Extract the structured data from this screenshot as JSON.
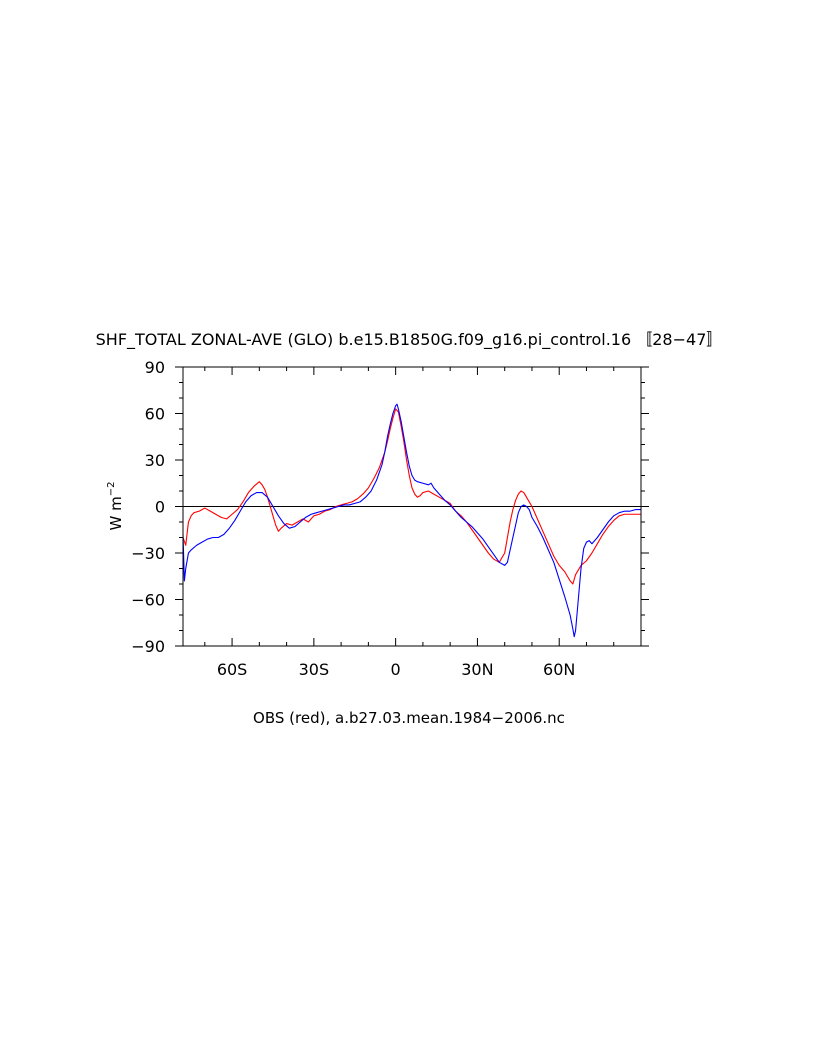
{
  "chart_data": {
    "type": "line",
    "title": "SHF_TOTAL ZONAL-AVE (GLO) b.e15.B1850G.f09_g16.pi_control.16 〚28−47〛",
    "xlabel": "OBS (red), a.b27.03.mean.1984−2006.nc",
    "ylabel": "W m",
    "ylabel_sup": "−2",
    "xlim": [
      -78,
      90
    ],
    "ylim": [
      -90,
      90
    ],
    "grid": false,
    "zero_line": true,
    "x_ticks": [
      {
        "value": -60,
        "label": "60S"
      },
      {
        "value": -30,
        "label": "30S"
      },
      {
        "value": 0,
        "label": "0"
      },
      {
        "value": 30,
        "label": "30N"
      },
      {
        "value": 60,
        "label": "60N"
      }
    ],
    "y_ticks": [
      {
        "value": 90,
        "label": "90"
      },
      {
        "value": 60,
        "label": "60"
      },
      {
        "value": 30,
        "label": "30"
      },
      {
        "value": 0,
        "label": "0"
      },
      {
        "value": -30,
        "label": "−30"
      },
      {
        "value": -60,
        "label": "−60"
      },
      {
        "value": -90,
        "label": "−90"
      }
    ],
    "series": [
      {
        "color": "#ff0000",
        "points": [
          [
            -78,
            -20
          ],
          [
            -77,
            -25
          ],
          [
            -76,
            -10
          ],
          [
            -75,
            -6
          ],
          [
            -74,
            -4
          ],
          [
            -72,
            -3
          ],
          [
            -70,
            -1
          ],
          [
            -68,
            -3
          ],
          [
            -66,
            -5
          ],
          [
            -64,
            -7
          ],
          [
            -62,
            -8
          ],
          [
            -60,
            -5
          ],
          [
            -58,
            -2
          ],
          [
            -56,
            3
          ],
          [
            -54,
            9
          ],
          [
            -52,
            13
          ],
          [
            -50,
            16
          ],
          [
            -49,
            14
          ],
          [
            -48,
            11
          ],
          [
            -47,
            6
          ],
          [
            -46,
            0
          ],
          [
            -45,
            -6
          ],
          [
            -44,
            -12
          ],
          [
            -43,
            -16
          ],
          [
            -42,
            -14
          ],
          [
            -40,
            -11
          ],
          [
            -38,
            -12
          ],
          [
            -36,
            -10
          ],
          [
            -34,
            -8
          ],
          [
            -32,
            -10
          ],
          [
            -30,
            -6
          ],
          [
            -28,
            -5
          ],
          [
            -26,
            -3
          ],
          [
            -24,
            -2
          ],
          [
            -22,
            0
          ],
          [
            -20,
            1
          ],
          [
            -18,
            2
          ],
          [
            -16,
            3
          ],
          [
            -14,
            5
          ],
          [
            -12,
            8
          ],
          [
            -10,
            12
          ],
          [
            -8,
            18
          ],
          [
            -6,
            25
          ],
          [
            -4,
            35
          ],
          [
            -3,
            42
          ],
          [
            -2,
            50
          ],
          [
            -1,
            57
          ],
          [
            0,
            63
          ],
          [
            1,
            61
          ],
          [
            2,
            52
          ],
          [
            3,
            42
          ],
          [
            4,
            30
          ],
          [
            5,
            20
          ],
          [
            6,
            12
          ],
          [
            7,
            8
          ],
          [
            8,
            6
          ],
          [
            9,
            7
          ],
          [
            10,
            9
          ],
          [
            12,
            10
          ],
          [
            14,
            8
          ],
          [
            16,
            6
          ],
          [
            18,
            4
          ],
          [
            20,
            2
          ],
          [
            22,
            -3
          ],
          [
            24,
            -6
          ],
          [
            26,
            -10
          ],
          [
            28,
            -15
          ],
          [
            30,
            -20
          ],
          [
            32,
            -25
          ],
          [
            34,
            -30
          ],
          [
            36,
            -34
          ],
          [
            38,
            -36
          ],
          [
            40,
            -30
          ],
          [
            41,
            -20
          ],
          [
            42,
            -10
          ],
          [
            43,
            -2
          ],
          [
            44,
            4
          ],
          [
            45,
            8
          ],
          [
            46,
            10
          ],
          [
            47,
            9
          ],
          [
            48,
            6
          ],
          [
            50,
            0
          ],
          [
            52,
            -8
          ],
          [
            54,
            -16
          ],
          [
            56,
            -24
          ],
          [
            58,
            -32
          ],
          [
            60,
            -38
          ],
          [
            62,
            -42
          ],
          [
            64,
            -48
          ],
          [
            65,
            -50
          ],
          [
            66,
            -44
          ],
          [
            68,
            -38
          ],
          [
            70,
            -35
          ],
          [
            72,
            -30
          ],
          [
            74,
            -24
          ],
          [
            76,
            -18
          ],
          [
            78,
            -13
          ],
          [
            80,
            -9
          ],
          [
            82,
            -6
          ],
          [
            84,
            -5
          ],
          [
            86,
            -5
          ],
          [
            88,
            -5
          ],
          [
            90,
            -5
          ]
        ]
      },
      {
        "color": "#0000ff",
        "points": [
          [
            -78,
            -18
          ],
          [
            -77.5,
            -48
          ],
          [
            -77,
            -40
          ],
          [
            -76,
            -30
          ],
          [
            -75,
            -28
          ],
          [
            -73,
            -25
          ],
          [
            -71,
            -23
          ],
          [
            -69,
            -21
          ],
          [
            -67,
            -20
          ],
          [
            -65,
            -20
          ],
          [
            -63,
            -18
          ],
          [
            -61,
            -14
          ],
          [
            -59,
            -9
          ],
          [
            -57,
            -3
          ],
          [
            -55,
            3
          ],
          [
            -53,
            7
          ],
          [
            -51,
            9
          ],
          [
            -49,
            9
          ],
          [
            -47,
            6
          ],
          [
            -45,
            0
          ],
          [
            -43,
            -6
          ],
          [
            -41,
            -11
          ],
          [
            -39,
            -14
          ],
          [
            -37,
            -13
          ],
          [
            -35,
            -10
          ],
          [
            -33,
            -7
          ],
          [
            -31,
            -5
          ],
          [
            -29,
            -4
          ],
          [
            -27,
            -3
          ],
          [
            -25,
            -2
          ],
          [
            -23,
            -1
          ],
          [
            -21,
            0
          ],
          [
            -19,
            1
          ],
          [
            -17,
            1
          ],
          [
            -15,
            2
          ],
          [
            -13,
            3
          ],
          [
            -11,
            6
          ],
          [
            -9,
            10
          ],
          [
            -7,
            17
          ],
          [
            -5,
            27
          ],
          [
            -4,
            35
          ],
          [
            -3,
            45
          ],
          [
            -2,
            53
          ],
          [
            -1,
            60
          ],
          [
            0,
            65
          ],
          [
            0.5,
            66
          ],
          [
            1,
            63
          ],
          [
            2,
            55
          ],
          [
            3,
            45
          ],
          [
            4,
            35
          ],
          [
            5,
            26
          ],
          [
            6,
            20
          ],
          [
            7,
            17
          ],
          [
            8,
            16
          ],
          [
            10,
            15
          ],
          [
            12,
            14
          ],
          [
            13,
            15
          ],
          [
            14,
            12
          ],
          [
            16,
            8
          ],
          [
            18,
            4
          ],
          [
            20,
            1
          ],
          [
            22,
            -3
          ],
          [
            24,
            -7
          ],
          [
            26,
            -10
          ],
          [
            28,
            -13
          ],
          [
            30,
            -17
          ],
          [
            32,
            -21
          ],
          [
            34,
            -26
          ],
          [
            36,
            -31
          ],
          [
            38,
            -36
          ],
          [
            40,
            -38
          ],
          [
            41,
            -36
          ],
          [
            42,
            -28
          ],
          [
            43,
            -20
          ],
          [
            44,
            -12
          ],
          [
            45,
            -4
          ],
          [
            46,
            0
          ],
          [
            47,
            1
          ],
          [
            48,
            0
          ],
          [
            49,
            -2
          ],
          [
            50,
            -7
          ],
          [
            52,
            -13
          ],
          [
            54,
            -20
          ],
          [
            56,
            -28
          ],
          [
            58,
            -36
          ],
          [
            60,
            -47
          ],
          [
            62,
            -58
          ],
          [
            64,
            -70
          ],
          [
            65,
            -79
          ],
          [
            65.5,
            -84
          ],
          [
            66,
            -80
          ],
          [
            67,
            -60
          ],
          [
            68,
            -40
          ],
          [
            69,
            -27
          ],
          [
            70,
            -23
          ],
          [
            71,
            -22
          ],
          [
            72,
            -24
          ],
          [
            74,
            -20
          ],
          [
            76,
            -15
          ],
          [
            78,
            -10
          ],
          [
            80,
            -6
          ],
          [
            82,
            -4
          ],
          [
            84,
            -3
          ],
          [
            86,
            -3
          ],
          [
            88,
            -2
          ],
          [
            90,
            -2
          ]
        ]
      }
    ]
  }
}
